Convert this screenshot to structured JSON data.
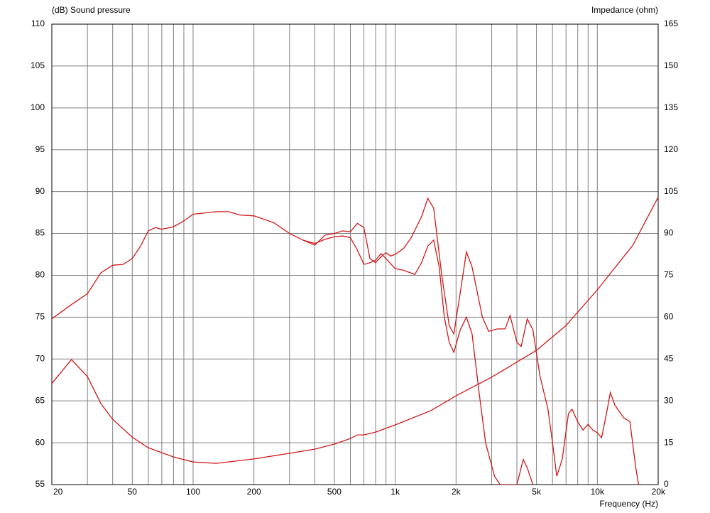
{
  "chart_data": {
    "type": "line",
    "y_label": "(dB)  Sound pressure",
    "y2_label": "Impedance  (ohm)",
    "x_label": "Frequency  (Hz)",
    "xscale": "log",
    "grid": true,
    "xlim": [
      20,
      20000
    ],
    "ylim": [
      55,
      110
    ],
    "y2lim": [
      0,
      165
    ],
    "xticks": [
      20,
      50,
      100,
      200,
      500,
      {
        "value": 1000,
        "label": "1k"
      },
      {
        "value": 2000,
        "label": "2k"
      },
      {
        "value": 5000,
        "label": "5k"
      },
      {
        "value": 10000,
        "label": "10k"
      },
      {
        "value": 20000,
        "label": "20k"
      }
    ],
    "x_gridlines": [
      20,
      30,
      40,
      50,
      60,
      70,
      80,
      90,
      100,
      200,
      300,
      400,
      500,
      600,
      700,
      800,
      900,
      1000,
      2000,
      3000,
      4000,
      5000,
      6000,
      7000,
      8000,
      9000,
      10000,
      20000
    ],
    "yticks": [
      55,
      60,
      65,
      70,
      75,
      80,
      85,
      90,
      95,
      100,
      105,
      110
    ],
    "y2ticks": [
      0,
      15,
      30,
      45,
      60,
      75,
      90,
      105,
      120,
      135,
      150,
      165
    ],
    "series": [
      {
        "color": "#d01818",
        "x": [
          20,
          25,
          30,
          35,
          40,
          45,
          50,
          55,
          60,
          65,
          70,
          80,
          90,
          100,
          110,
          130,
          150,
          170,
          200,
          250,
          300,
          350,
          400,
          450,
          500,
          550,
          600,
          650,
          700,
          750,
          800,
          850,
          900,
          950,
          1000,
          1100,
          1200,
          1350,
          1450,
          1550,
          1700,
          1850,
          1950,
          2100,
          2250,
          2400,
          2700,
          2900,
          3200,
          3500,
          3700,
          4000,
          4200,
          4500,
          4800,
          5200,
          5700,
          6000,
          6300,
          6700,
          7200,
          7500,
          8000,
          8500,
          9000,
          9500,
          10000,
          10500,
          11200,
          11600,
          12200,
          13500,
          14500,
          15500,
          16000
        ],
        "values": [
          74.8,
          76.5,
          77.8,
          80.3,
          81.2,
          81.3,
          82,
          83.5,
          85.3,
          85.7,
          85.5,
          85.8,
          86.5,
          87.3,
          87.4,
          87.6,
          87.6,
          87.2,
          87.1,
          86.3,
          85,
          84.2,
          83.6,
          84.8,
          85,
          85.3,
          85.2,
          86.2,
          85.7,
          82,
          81.5,
          82.2,
          82.7,
          82.3,
          82.5,
          83.2,
          84.5,
          87,
          89.2,
          88,
          80,
          74,
          73,
          78,
          82.8,
          81,
          75,
          73.3,
          73.6,
          73.6,
          75.2,
          72,
          71.5,
          74.8,
          73.5,
          68,
          64,
          60,
          56,
          58,
          63.5,
          64,
          62.5,
          61.5,
          62.2,
          61.5,
          61.2,
          60.6,
          64,
          66,
          64.5,
          63,
          62.5,
          57,
          55
        ]
      },
      {
        "color": "#d01818",
        "x": [
          350,
          400,
          450,
          500,
          550,
          600,
          650,
          700,
          750,
          800,
          850,
          900,
          1000,
          1100,
          1250,
          1350,
          1450,
          1550,
          1650,
          1750,
          1850,
          1950,
          2100,
          2250,
          2400,
          2600,
          2800,
          3100,
          3300,
          4000,
          4300,
          4500,
          4800
        ],
        "values": [
          84.2,
          83.8,
          84.3,
          84.6,
          84.7,
          84.5,
          83,
          81.3,
          81.5,
          81.8,
          82.6,
          82,
          80.8,
          80.6,
          80.1,
          81.5,
          83.5,
          84.2,
          81,
          75,
          72,
          70.8,
          73.5,
          75,
          73,
          66,
          60,
          56,
          55,
          55,
          58,
          57,
          55
        ]
      },
      {
        "color": "#d01818",
        "axis": "y2",
        "x": [
          20,
          25,
          30,
          35,
          40,
          50,
          60,
          80,
          100,
          130,
          200,
          300,
          400,
          500,
          600,
          650,
          700,
          800,
          1000,
          1500,
          2000,
          3000,
          5000,
          7000,
          10000,
          15000,
          20000
        ],
        "values": [
          36.2,
          44.8,
          38.7,
          29,
          23.4,
          17,
          13.2,
          9.9,
          8.1,
          7.6,
          9.2,
          11.2,
          12.7,
          14.5,
          16.5,
          17.8,
          17.8,
          18.8,
          21.4,
          26.5,
          31.8,
          38.5,
          48.1,
          57,
          69.8,
          85.8,
          103
        ]
      }
    ]
  }
}
